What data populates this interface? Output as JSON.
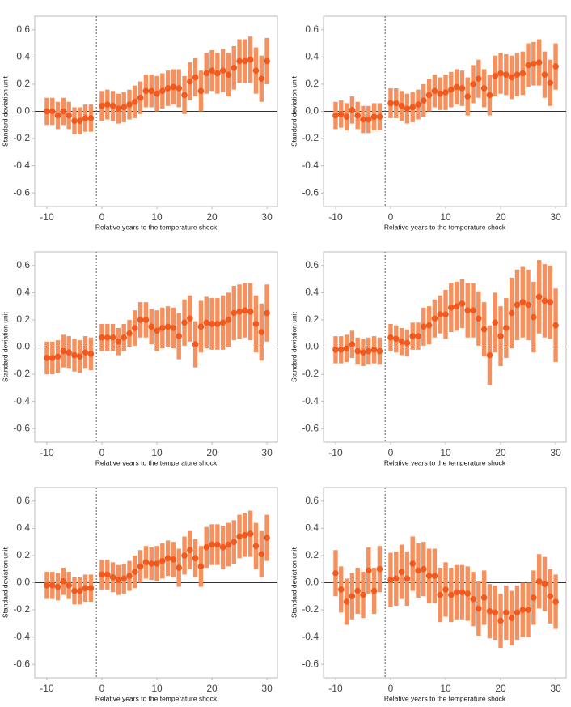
{
  "chart_data": [
    {
      "type": "errorbar",
      "xlabel": "Relative years to the temperature shock",
      "ylabel": "Standard deviation unit",
      "x": [
        -10,
        -9,
        -8,
        -7,
        -6,
        -5,
        -4,
        -3,
        -2,
        0,
        1,
        2,
        3,
        4,
        5,
        6,
        7,
        8,
        9,
        10,
        11,
        12,
        13,
        14,
        15,
        16,
        17,
        18,
        19,
        20,
        21,
        22,
        23,
        24,
        25,
        26,
        27,
        28,
        29,
        30
      ],
      "values": [
        0.0,
        0.0,
        -0.03,
        0.0,
        -0.03,
        -0.07,
        -0.07,
        -0.05,
        -0.05,
        0.04,
        0.05,
        0.04,
        0.02,
        0.03,
        0.05,
        0.07,
        0.1,
        0.15,
        0.15,
        0.13,
        0.15,
        0.17,
        0.18,
        0.17,
        0.12,
        0.22,
        0.25,
        0.15,
        0.28,
        0.3,
        0.28,
        0.3,
        0.27,
        0.32,
        0.37,
        0.37,
        0.38,
        0.3,
        0.24,
        0.37
      ],
      "errors": [
        0.1,
        0.1,
        0.1,
        0.1,
        0.1,
        0.1,
        0.1,
        0.1,
        0.1,
        0.11,
        0.11,
        0.11,
        0.11,
        0.11,
        0.11,
        0.12,
        0.12,
        0.12,
        0.12,
        0.13,
        0.13,
        0.13,
        0.13,
        0.14,
        0.14,
        0.14,
        0.14,
        0.15,
        0.15,
        0.15,
        0.15,
        0.16,
        0.16,
        0.16,
        0.16,
        0.16,
        0.17,
        0.17,
        0.17,
        0.17
      ],
      "color": "#f4915e",
      "point_color": "#f05a1e",
      "vline": -1,
      "hline": 0,
      "xlim": [
        -12.2,
        31.9
      ],
      "ylim": [
        -0.7,
        0.7
      ],
      "xticks": [
        -10,
        0,
        10,
        20,
        30
      ],
      "yticks": [
        -0.6,
        -0.4,
        -0.2,
        {
          "value": 0,
          "label": "0.0"
        },
        0.2,
        0.4,
        0.6
      ]
    },
    {
      "type": "errorbar",
      "xlabel": "Relative years to the temperature shock",
      "ylabel": "Standard deviation unit",
      "x": [
        -10,
        -9,
        -8,
        -7,
        -6,
        -5,
        -4,
        -3,
        -2,
        0,
        1,
        2,
        3,
        4,
        5,
        6,
        7,
        8,
        9,
        10,
        11,
        12,
        13,
        14,
        15,
        16,
        17,
        18,
        19,
        20,
        21,
        22,
        23,
        24,
        25,
        26,
        27,
        28,
        29,
        30
      ],
      "values": [
        -0.03,
        -0.02,
        -0.04,
        0.01,
        -0.03,
        -0.06,
        -0.06,
        -0.04,
        -0.04,
        0.06,
        0.06,
        0.04,
        0.02,
        0.03,
        0.05,
        0.08,
        0.12,
        0.15,
        0.13,
        0.14,
        0.16,
        0.18,
        0.17,
        0.11,
        0.2,
        0.24,
        0.17,
        0.12,
        0.26,
        0.28,
        0.27,
        0.25,
        0.27,
        0.28,
        0.34,
        0.35,
        0.36,
        0.27,
        0.21,
        0.33
      ],
      "errors": [
        0.1,
        0.1,
        0.1,
        0.1,
        0.1,
        0.1,
        0.1,
        0.1,
        0.1,
        0.11,
        0.11,
        0.11,
        0.11,
        0.11,
        0.11,
        0.12,
        0.12,
        0.12,
        0.12,
        0.13,
        0.13,
        0.13,
        0.13,
        0.14,
        0.14,
        0.14,
        0.14,
        0.15,
        0.15,
        0.15,
        0.15,
        0.16,
        0.16,
        0.16,
        0.16,
        0.16,
        0.17,
        0.17,
        0.17,
        0.17
      ],
      "color": "#f4915e",
      "point_color": "#f05a1e",
      "vline": -1,
      "hline": 0,
      "xlim": [
        -12.2,
        31.9
      ],
      "ylim": [
        -0.7,
        0.7
      ],
      "xticks": [
        -10,
        0,
        10,
        20,
        30
      ],
      "yticks": [
        -0.6,
        -0.4,
        -0.2,
        {
          "value": 0,
          "label": "0.0"
        },
        0.2,
        0.4,
        0.6
      ]
    },
    {
      "type": "errorbar",
      "xlabel": "Relative years to the temperature shock",
      "ylabel": "Standard deviation unit",
      "x": [
        -10,
        -9,
        -8,
        -7,
        -6,
        -5,
        -4,
        -3,
        -2,
        0,
        1,
        2,
        3,
        4,
        5,
        6,
        7,
        8,
        9,
        10,
        11,
        12,
        13,
        14,
        15,
        16,
        17,
        18,
        19,
        20,
        21,
        22,
        23,
        24,
        25,
        26,
        27,
        28,
        29,
        30
      ],
      "values": [
        -0.08,
        -0.08,
        -0.07,
        -0.03,
        -0.04,
        -0.06,
        -0.07,
        -0.04,
        -0.05,
        0.07,
        0.07,
        0.07,
        0.04,
        0.07,
        0.1,
        0.14,
        0.2,
        0.2,
        0.15,
        0.12,
        0.14,
        0.15,
        0.14,
        0.08,
        0.18,
        0.21,
        0.02,
        0.15,
        0.18,
        0.17,
        0.17,
        0.18,
        0.2,
        0.25,
        0.26,
        0.27,
        0.26,
        0.17,
        0.11,
        0.25
      ],
      "errors": [
        0.12,
        0.12,
        0.12,
        0.12,
        0.12,
        0.12,
        0.12,
        0.12,
        0.12,
        0.1,
        0.1,
        0.1,
        0.1,
        0.1,
        0.1,
        0.13,
        0.13,
        0.13,
        0.13,
        0.15,
        0.15,
        0.15,
        0.15,
        0.17,
        0.17,
        0.17,
        0.17,
        0.19,
        0.19,
        0.19,
        0.19,
        0.2,
        0.2,
        0.2,
        0.2,
        0.2,
        0.21,
        0.21,
        0.21,
        0.21
      ],
      "color": "#f4915e",
      "point_color": "#f05a1e",
      "vline": -1,
      "hline": 0,
      "xlim": [
        -12.2,
        31.9
      ],
      "ylim": [
        -0.7,
        0.7
      ],
      "xticks": [
        -10,
        0,
        10,
        20,
        30
      ],
      "yticks": [
        -0.6,
        -0.4,
        -0.2,
        {
          "value": 0,
          "label": "0.0"
        },
        0.2,
        0.4,
        0.6
      ]
    },
    {
      "type": "errorbar",
      "xlabel": "Relative years to the temperature shock",
      "ylabel": "Standard deviation unit",
      "x": [
        -10,
        -9,
        -8,
        -7,
        -6,
        -5,
        -4,
        -3,
        -2,
        0,
        1,
        2,
        3,
        4,
        5,
        6,
        7,
        8,
        9,
        10,
        11,
        12,
        13,
        14,
        15,
        16,
        17,
        18,
        19,
        20,
        21,
        22,
        23,
        24,
        25,
        26,
        27,
        28,
        29,
        30
      ],
      "values": [
        -0.02,
        -0.02,
        -0.01,
        0.02,
        -0.03,
        -0.04,
        -0.03,
        -0.02,
        -0.03,
        0.07,
        0.06,
        0.04,
        0.03,
        0.08,
        0.08,
        0.15,
        0.16,
        0.21,
        0.24,
        0.24,
        0.29,
        0.3,
        0.32,
        0.27,
        0.27,
        0.21,
        0.13,
        -0.06,
        0.18,
        0.08,
        0.14,
        0.25,
        0.31,
        0.33,
        0.31,
        0.22,
        0.37,
        0.34,
        0.33,
        0.16
      ],
      "errors": [
        0.1,
        0.1,
        0.1,
        0.1,
        0.1,
        0.1,
        0.1,
        0.1,
        0.1,
        0.1,
        0.1,
        0.1,
        0.1,
        0.1,
        0.1,
        0.14,
        0.14,
        0.14,
        0.14,
        0.18,
        0.18,
        0.18,
        0.18,
        0.2,
        0.2,
        0.2,
        0.2,
        0.22,
        0.22,
        0.22,
        0.22,
        0.26,
        0.26,
        0.26,
        0.26,
        0.26,
        0.27,
        0.27,
        0.27,
        0.27
      ],
      "color": "#f4915e",
      "point_color": "#f05a1e",
      "vline": -1,
      "hline": 0,
      "xlim": [
        -12.2,
        31.9
      ],
      "ylim": [
        -0.7,
        0.7
      ],
      "xticks": [
        -10,
        0,
        10,
        20,
        30
      ],
      "yticks": [
        -0.6,
        -0.4,
        -0.2,
        {
          "value": 0,
          "label": "0.0"
        },
        0.2,
        0.4,
        0.6
      ]
    },
    {
      "type": "errorbar",
      "xlabel": "Relative years to the temperature shock",
      "ylabel": "Standard deviation unit",
      "x": [
        -10,
        -9,
        -8,
        -7,
        -6,
        -5,
        -4,
        -3,
        -2,
        0,
        1,
        2,
        3,
        4,
        5,
        6,
        7,
        8,
        9,
        10,
        11,
        12,
        13,
        14,
        15,
        16,
        17,
        18,
        19,
        20,
        21,
        22,
        23,
        24,
        25,
        26,
        27,
        28,
        29,
        30
      ],
      "values": [
        -0.02,
        -0.02,
        -0.03,
        0.01,
        -0.02,
        -0.06,
        -0.06,
        -0.04,
        -0.04,
        0.06,
        0.06,
        0.04,
        0.02,
        0.03,
        0.05,
        0.08,
        0.12,
        0.15,
        0.14,
        0.14,
        0.16,
        0.18,
        0.17,
        0.11,
        0.2,
        0.24,
        0.18,
        0.12,
        0.26,
        0.28,
        0.28,
        0.26,
        0.28,
        0.3,
        0.34,
        0.35,
        0.36,
        0.27,
        0.21,
        0.33
      ],
      "errors": [
        0.1,
        0.1,
        0.1,
        0.1,
        0.1,
        0.1,
        0.1,
        0.1,
        0.1,
        0.11,
        0.11,
        0.11,
        0.11,
        0.11,
        0.11,
        0.12,
        0.12,
        0.12,
        0.12,
        0.13,
        0.13,
        0.13,
        0.13,
        0.14,
        0.14,
        0.14,
        0.14,
        0.15,
        0.15,
        0.15,
        0.15,
        0.16,
        0.16,
        0.16,
        0.16,
        0.16,
        0.17,
        0.17,
        0.17,
        0.17
      ],
      "color": "#f4915e",
      "point_color": "#f05a1e",
      "vline": -1,
      "hline": 0,
      "xlim": [
        -12.2,
        31.9
      ],
      "ylim": [
        -0.7,
        0.7
      ],
      "xticks": [
        -10,
        0,
        10,
        20,
        30
      ],
      "yticks": [
        -0.6,
        -0.4,
        -0.2,
        {
          "value": 0,
          "label": "0.0"
        },
        0.2,
        0.4,
        0.6
      ]
    },
    {
      "type": "errorbar",
      "xlabel": "Relative years to the temperature shock",
      "ylabel": "Standard deviation unit",
      "x": [
        -10,
        -9,
        -8,
        -7,
        -6,
        -5,
        -4,
        -3,
        -2,
        0,
        1,
        2,
        3,
        4,
        5,
        6,
        7,
        8,
        9,
        10,
        11,
        12,
        13,
        14,
        15,
        16,
        17,
        18,
        19,
        20,
        21,
        22,
        23,
        24,
        25,
        26,
        27,
        28,
        29,
        30
      ],
      "values": [
        0.07,
        -0.05,
        -0.14,
        -0.1,
        -0.06,
        -0.09,
        0.09,
        -0.06,
        0.1,
        0.02,
        0.03,
        0.08,
        0.03,
        0.14,
        0.09,
        0.1,
        0.05,
        0.05,
        -0.09,
        -0.05,
        -0.09,
        -0.07,
        -0.07,
        -0.08,
        -0.12,
        -0.19,
        -0.11,
        -0.21,
        -0.22,
        -0.28,
        -0.22,
        -0.26,
        -0.22,
        -0.2,
        -0.2,
        -0.11,
        0.01,
        -0.01,
        -0.1,
        -0.14
      ],
      "errors": [
        0.17,
        0.17,
        0.17,
        0.17,
        0.17,
        0.17,
        0.17,
        0.17,
        0.17,
        0.2,
        0.2,
        0.2,
        0.2,
        0.2,
        0.2,
        0.2,
        0.2,
        0.2,
        0.2,
        0.2,
        0.2,
        0.2,
        0.2,
        0.2,
        0.2,
        0.2,
        0.2,
        0.2,
        0.2,
        0.2,
        0.2,
        0.2,
        0.2,
        0.2,
        0.2,
        0.2,
        0.2,
        0.2,
        0.2,
        0.2
      ],
      "color": "#f4915e",
      "point_color": "#f05a1e",
      "vline": -1,
      "hline": 0,
      "xlim": [
        -12.2,
        31.9
      ],
      "ylim": [
        -0.7,
        0.7
      ],
      "xticks": [
        -10,
        0,
        10,
        20,
        30
      ],
      "yticks": [
        -0.6,
        -0.4,
        -0.2,
        {
          "value": 0,
          "label": "0.0"
        },
        0.2,
        0.4,
        0.6
      ]
    }
  ]
}
